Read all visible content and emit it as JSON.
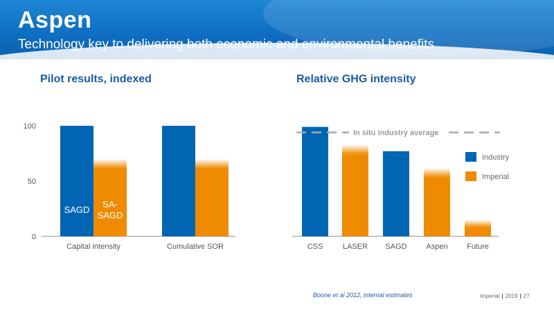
{
  "slide": {
    "title": "Aspen",
    "subtitle": "Technology key to delivering both economic and environmental benefits",
    "source": "Boone et al 2012, internal estimates",
    "footer": {
      "company": "Imperial",
      "year": "2019",
      "page": "27"
    }
  },
  "colors": {
    "industry": "#0066b3",
    "imperial": "#ef8b00",
    "header": "#0f6fc2",
    "title_blue": "#1a5aa8",
    "reference_line": "#a9a9a9"
  },
  "chart_data": [
    {
      "type": "bar",
      "title": "Pilot results, indexed",
      "categories": [
        "Capital intensity",
        "Cumulative SOR"
      ],
      "series": [
        {
          "name": "SAGD",
          "values": [
            100,
            100
          ]
        },
        {
          "name": "SA-SAGD",
          "values": [
            70,
            70
          ]
        }
      ],
      "yticks": [
        0,
        50,
        100
      ],
      "ylim": [
        0,
        100
      ],
      "grid": false,
      "legend": "bar labels"
    },
    {
      "type": "bar",
      "title": "Relative GHG intensity",
      "categories": [
        "CSS",
        "LASER",
        "SAGD",
        "Aspen",
        "Future"
      ],
      "values": [
        99,
        83,
        77,
        62,
        15
      ],
      "colors": [
        "industry",
        "imperial",
        "industry",
        "imperial",
        "imperial"
      ],
      "series": [
        {
          "name": "Industry"
        },
        {
          "name": "Imperial"
        }
      ],
      "reference_line": {
        "label": "In situ industry average",
        "value": 94
      },
      "ylim": [
        0,
        100
      ],
      "grid": false,
      "legend": "right"
    }
  ]
}
